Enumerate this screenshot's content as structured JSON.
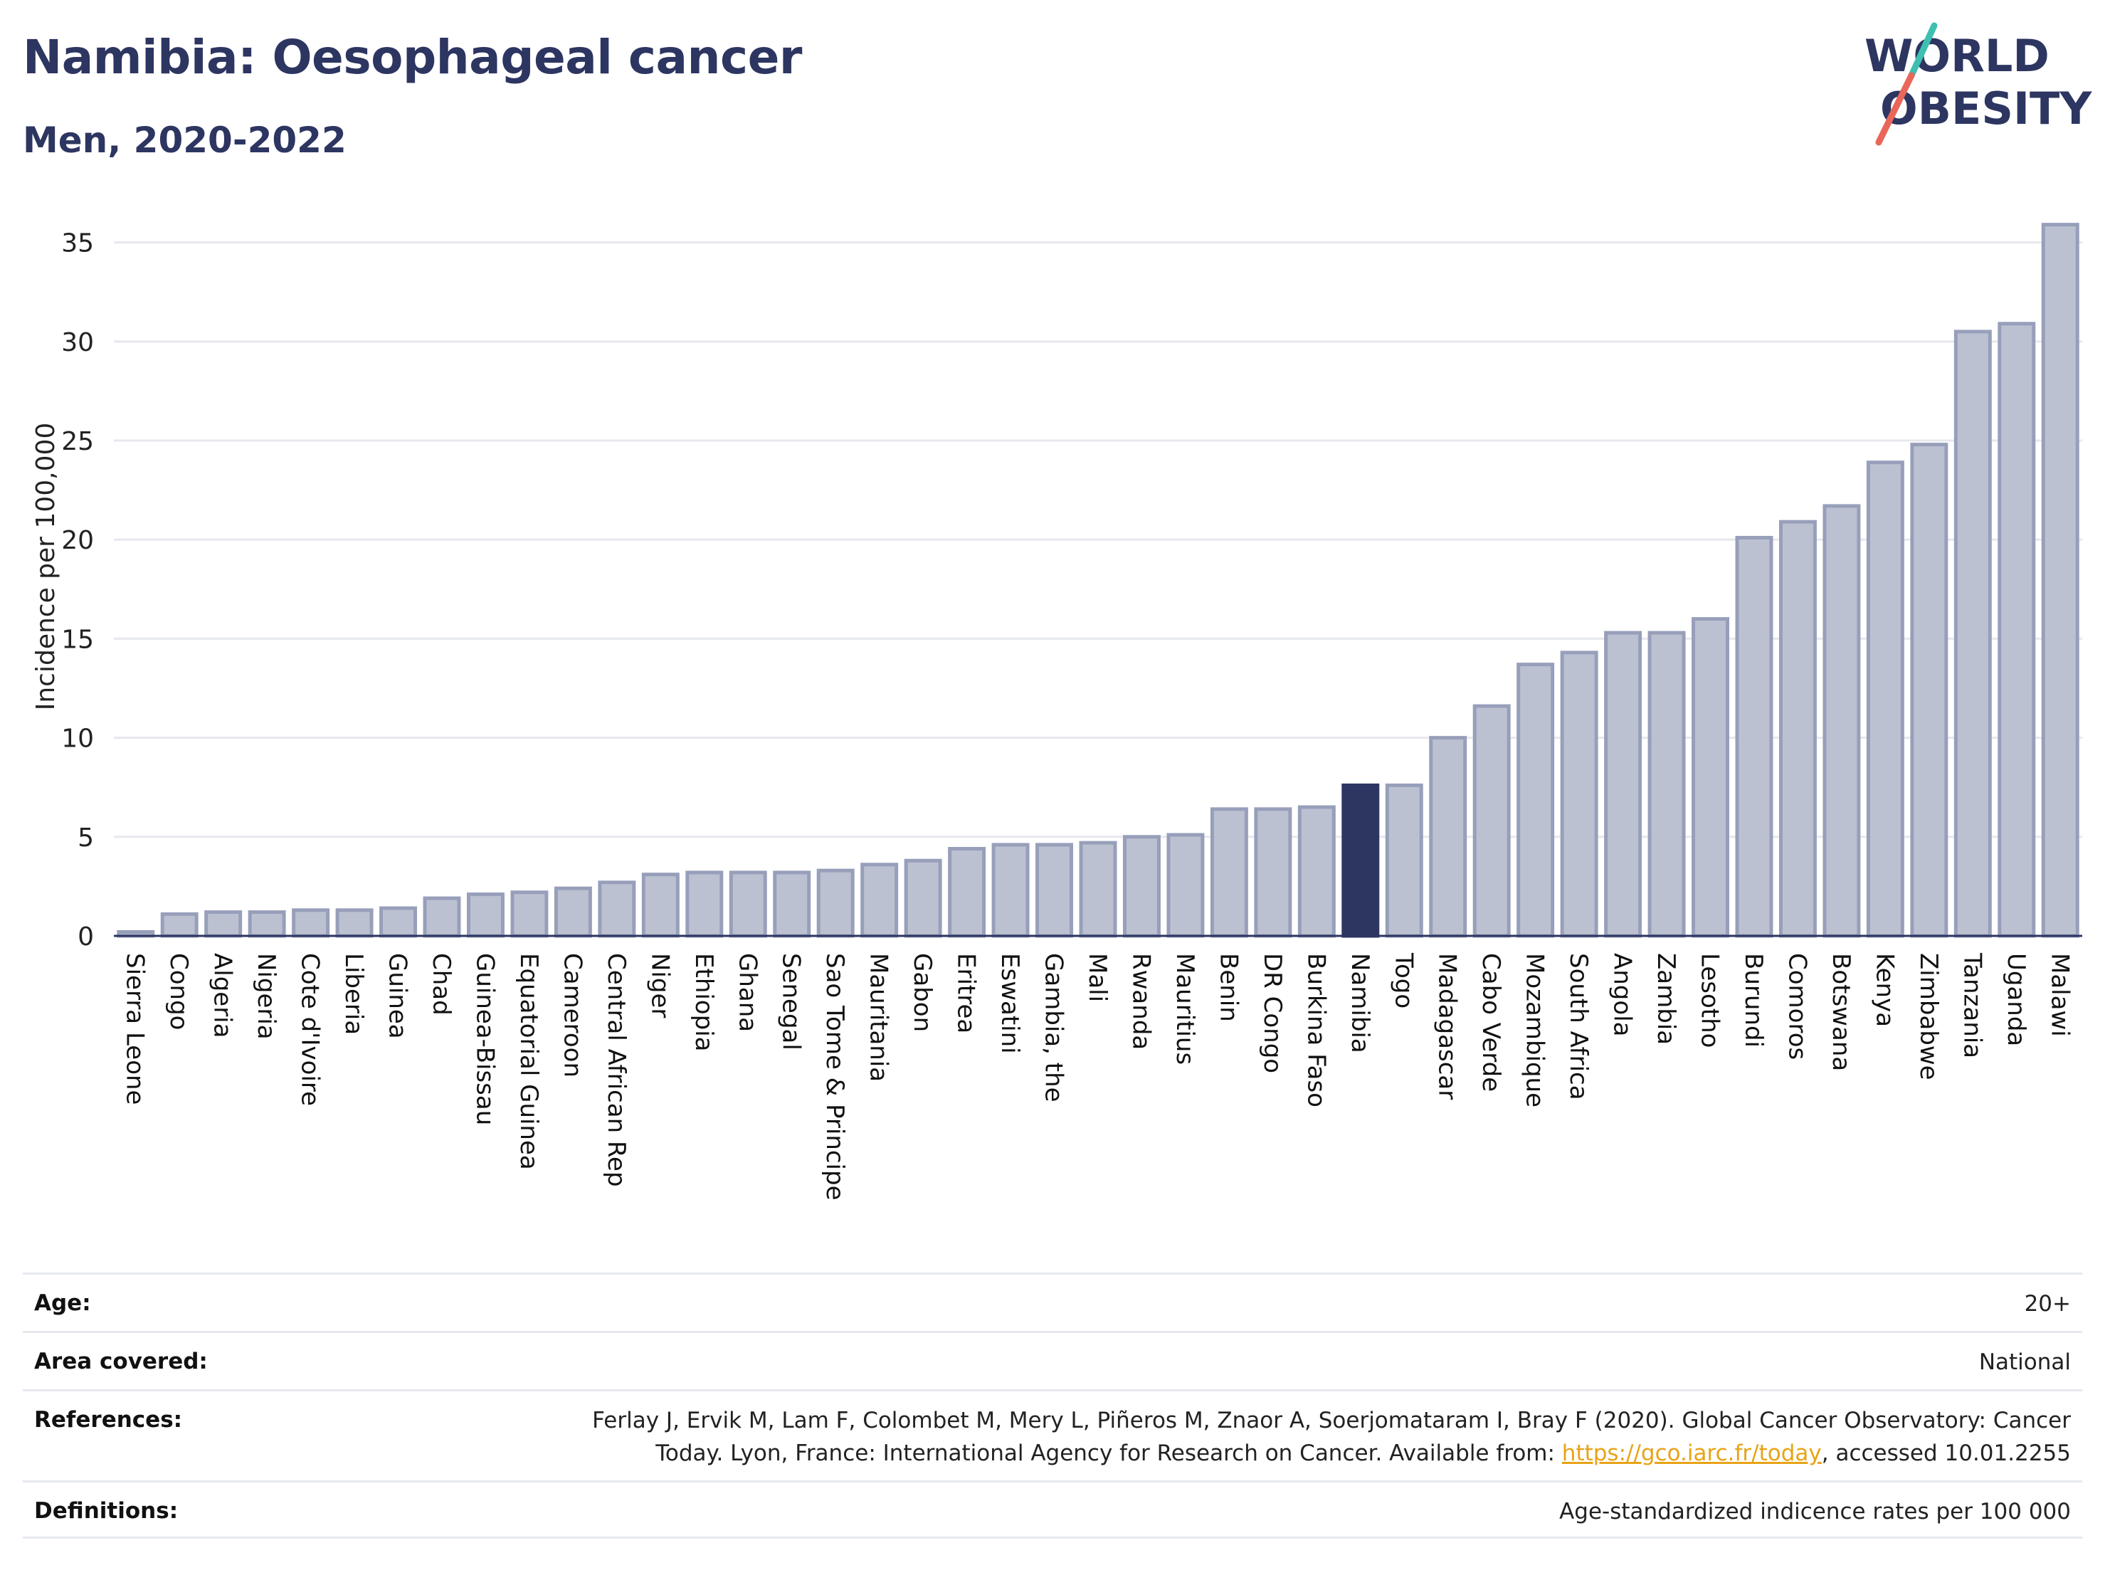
{
  "header": {
    "title": "Namibia: Oesophageal cancer",
    "subtitle": "Men, 2020-2022"
  },
  "logo": {
    "line1": "WORLD",
    "line2": "OBESITY",
    "slash_colors": [
      "#3fbfb0",
      "#e8675a"
    ],
    "text_color": "#2d3561"
  },
  "chart_data": {
    "type": "bar",
    "ylabel": "Incidence per 100,000",
    "xlabel": "",
    "ylim": [
      0,
      37
    ],
    "yticks": [
      0,
      5,
      10,
      15,
      20,
      25,
      30,
      35
    ],
    "grid": true,
    "highlight": "Namibia",
    "colors": {
      "bar": "#bcc1d2",
      "bar_edge": "#979fba",
      "highlight": "#2d3561",
      "axis": "#2d3561",
      "grid": "#e6e8ee"
    },
    "categories": [
      "Sierra Leone",
      "Congo",
      "Algeria",
      "Nigeria",
      "Cote d'Ivoire",
      "Liberia",
      "Guinea",
      "Chad",
      "Guinea-Bissau",
      "Equatorial Guinea",
      "Cameroon",
      "Central African Rep",
      "Niger",
      "Ethiopia",
      "Ghana",
      "Senegal",
      "Sao Tome & Principe",
      "Mauritania",
      "Gabon",
      "Eritrea",
      "Eswatini",
      "Gambia, the",
      "Mali",
      "Rwanda",
      "Mauritius",
      "Benin",
      "DR Congo",
      "Burkina Faso",
      "Namibia",
      "Togo",
      "Madagascar",
      "Cabo Verde",
      "Mozambique",
      "South Africa",
      "Angola",
      "Zambia",
      "Lesotho",
      "Burundi",
      "Comoros",
      "Botswana",
      "Kenya",
      "Zimbabwe",
      "Tanzania",
      "Uganda",
      "Malawi"
    ],
    "values": [
      0.2,
      1.1,
      1.2,
      1.2,
      1.3,
      1.3,
      1.4,
      1.9,
      2.1,
      2.2,
      2.4,
      2.7,
      3.1,
      3.2,
      3.2,
      3.2,
      3.3,
      3.6,
      3.8,
      4.4,
      4.6,
      4.6,
      4.7,
      5.0,
      5.1,
      6.4,
      6.4,
      6.5,
      7.6,
      7.6,
      10.0,
      11.6,
      13.7,
      14.3,
      15.3,
      15.3,
      16.0,
      20.1,
      20.9,
      21.7,
      23.9,
      24.8,
      30.5,
      30.9,
      35.9
    ]
  },
  "info": {
    "age_label": "Age:",
    "age_value": "20+",
    "area_label": "Area covered:",
    "area_value": "National",
    "references_label": "References:",
    "references_line1": "Ferlay J, Ervik M, Lam F, Colombet M, Mery L, Piñeros M, Znaor A, Soerjomataram I, Bray F (2020). Global Cancer Observatory: Cancer",
    "references_line2_pre": "Today. Lyon, France: International Agency for Research on Cancer. Available from: ",
    "references_link": "https://gco.iarc.fr/today",
    "references_line2_post": ", accessed 10.01.2255",
    "definitions_label": "Definitions:",
    "definitions_value": "Age-standardized indicence rates per 100 000"
  }
}
